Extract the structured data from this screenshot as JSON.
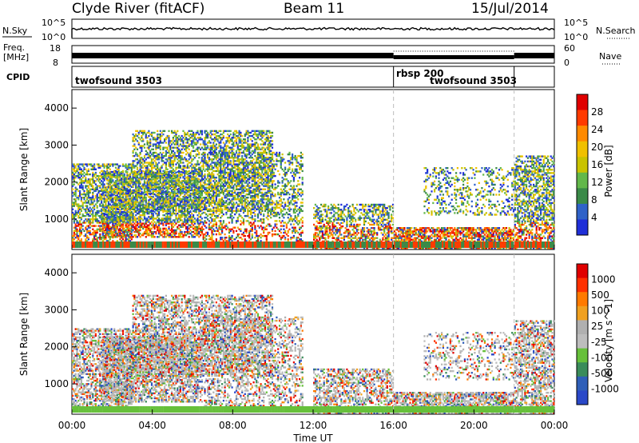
{
  "header": {
    "station": "Clyde River (fitACF)",
    "beam": "Beam 11",
    "date": "15/Jul/2014"
  },
  "status_panels": {
    "nsky_label": "N.Sky",
    "nsky_ticks": [
      "10^5",
      "10^0"
    ],
    "nsearch_label": "N.Search",
    "nsearch_ticks": [
      "10^5",
      "10^0"
    ],
    "freq_label_line1": "Freq.",
    "freq_label_line2": "[MHz]",
    "freq_ticks": [
      "18",
      "8"
    ],
    "nave_label": "Nave",
    "nave_ticks": [
      "60",
      "0"
    ],
    "cpid_label": "CPID",
    "modes": [
      {
        "name": "twofsound 3503",
        "start_hour": 0,
        "end_hour": 16
      },
      {
        "name": "rbsp 200",
        "start_hour": 16,
        "end_hour": 22
      },
      {
        "name": "twofsound 3503",
        "start_hour": 22,
        "end_hour": 24
      }
    ],
    "mode_boundaries_hours": [
      16,
      22
    ],
    "dotted_nave_span_hours": [
      16,
      22
    ]
  },
  "chart_data": [
    {
      "type": "heatmap",
      "title": "Power",
      "xlabel": "Time UT",
      "ylabel": "Slant Range [km]",
      "xlim_hours": [
        0,
        24
      ],
      "ylim_km": [
        180,
        4500
      ],
      "x_ticks": [
        "00:00",
        "04:00",
        "08:00",
        "12:00",
        "16:00",
        "20:00",
        "00:00"
      ],
      "y_ticks": [
        "1000",
        "2000",
        "3000",
        "4000"
      ],
      "colorbar_label": "Power [dB]",
      "colorbar_ticks": [
        "28",
        "24",
        "20",
        "16",
        "12",
        "8",
        "4"
      ],
      "colorbar_range": [
        0,
        30
      ],
      "colors": [
        "#1f2fd8",
        "#2f62c8",
        "#3a8a48",
        "#62b84a",
        "#c9c300",
        "#f0c000",
        "#ff8a00",
        "#ff3a00",
        "#e00000"
      ]
    },
    {
      "type": "heatmap",
      "title": "Velocity",
      "xlabel": "Time UT",
      "ylabel": "Slant Range [km]",
      "xlim_hours": [
        0,
        24
      ],
      "ylim_km": [
        180,
        4500
      ],
      "x_ticks": [
        "00:00",
        "04:00",
        "08:00",
        "12:00",
        "16:00",
        "20:00",
        "00:00"
      ],
      "y_ticks": [
        "1000",
        "2000",
        "3000",
        "4000"
      ],
      "colorbar_label": "Velocity [m s^-1]",
      "colorbar_ticks": [
        "1000",
        "500",
        "100",
        "25",
        "-25",
        "-100",
        "-500",
        "-1000"
      ],
      "colors": [
        "#2a48c8",
        "#2f5fb8",
        "#3a8c5a",
        "#66c03a",
        "#bdbdbd",
        "#b0b0b0",
        "#f0a020",
        "#ff7a00",
        "#ff3000",
        "#e00000"
      ]
    }
  ]
}
